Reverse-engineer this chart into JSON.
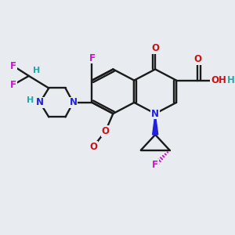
{
  "bg_color": "#e8ecf0",
  "bc": "#1a1a1a",
  "lw": 1.7,
  "atom_colors": {
    "N": "#2020dd",
    "O": "#cc1111",
    "F": "#cc11cc",
    "H": "#22aaaa"
  },
  "figsize": [
    3.0,
    3.0
  ],
  "dpi": 100,
  "xlim": [
    -0.8,
    3.4
  ],
  "ylim": [
    -0.5,
    3.2
  ]
}
